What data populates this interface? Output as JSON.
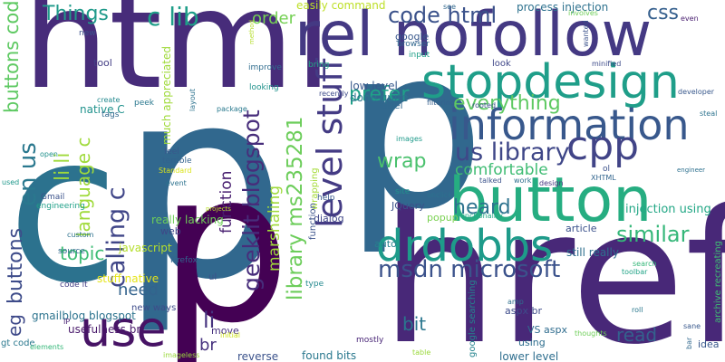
{
  "words": [
    {
      "text": "p",
      "color": "#31688e"
    },
    {
      "text": "href",
      "color": "#482878"
    },
    {
      "text": "p",
      "color": "#31688e"
    },
    {
      "text": "html",
      "color": "#472c7a"
    },
    {
      "text": "c",
      "color": "#2c728e"
    },
    {
      "text": "p",
      "color": "#440154"
    },
    {
      "text": "rel nofollow",
      "color": "#443983"
    },
    {
      "text": "stopdesign",
      "color": "#1f9e89"
    },
    {
      "text": "button",
      "color": "#26ad81"
    },
    {
      "text": "information",
      "color": "#38588c"
    },
    {
      "text": "cpp",
      "color": "#414487"
    },
    {
      "text": "level stuff",
      "color": "#443b84"
    },
    {
      "text": "drdobbs",
      "color": "#1e9b8a"
    },
    {
      "text": "use",
      "color": "#471365"
    },
    {
      "text": "us library",
      "color": "#3f4788"
    },
    {
      "text": "geeklit blogspot",
      "color": "#472d7b"
    },
    {
      "text": "library ms235281",
      "color": "#6ccd5a"
    },
    {
      "text": "msdn microsoft",
      "color": "#3b528b"
    },
    {
      "text": "calling c",
      "color": "#404688"
    },
    {
      "text": "buttons code",
      "color": "#5ec962"
    },
    {
      "text": "Things",
      "color": "#1f9a8a"
    },
    {
      "text": "c lib",
      "color": "#1f9e89"
    },
    {
      "text": "order",
      "color": "#75d054"
    },
    {
      "text": "code html",
      "color": "#3b528b"
    },
    {
      "text": "css",
      "color": "#355f8d"
    },
    {
      "text": "prefer",
      "color": "#1fa188"
    },
    {
      "text": "everything",
      "color": "#5ec962"
    },
    {
      "text": "li li",
      "color": "#9fda3a"
    },
    {
      "text": "language c",
      "color": "#9fda3a"
    },
    {
      "text": "en us",
      "color": "#2a788e"
    },
    {
      "text": "buttons",
      "color": "#3e4c8a"
    },
    {
      "text": "similar",
      "color": "#35b779"
    },
    {
      "text": "heard",
      "color": "#2c728e"
    },
    {
      "text": "comfortable",
      "color": "#3fbc73"
    },
    {
      "text": "wrap",
      "color": "#4ac16d"
    },
    {
      "text": "li",
      "color": "#46337f"
    },
    {
      "text": "need",
      "color": "#33638d"
    },
    {
      "text": "topic",
      "color": "#3dbc74"
    },
    {
      "text": "read",
      "color": "#34618d"
    },
    {
      "text": "bit",
      "color": "#2a768e"
    },
    {
      "text": "eg",
      "color": "#3e4989"
    },
    {
      "text": "br",
      "color": "#46327e"
    },
    {
      "text": "marshaling",
      "color": "#9fda3a"
    },
    {
      "text": "function",
      "color": "#481f70"
    },
    {
      "text": "native C",
      "color": "#20928c"
    },
    {
      "text": "much appreciated",
      "color": "#9fda3a"
    },
    {
      "text": "easily command",
      "color": "#bddf26"
    },
    {
      "text": "process injection",
      "color": "#2d718e"
    },
    {
      "text": "injection using",
      "color": "#22a785"
    },
    {
      "text": "low level",
      "color": "#38588c"
    },
    {
      "text": "done quite",
      "color": "#2a768e"
    },
    {
      "text": "label",
      "color": "#31688e"
    },
    {
      "text": "JQuery",
      "color": "#3b518b"
    },
    {
      "text": "google",
      "color": "#38588c"
    },
    {
      "text": "browser",
      "color": "#31688e"
    },
    {
      "text": "really lacking",
      "color": "#6ece58"
    },
    {
      "text": "javascript",
      "color": "#b5de2b"
    },
    {
      "text": "stuff native",
      "color": "#e5e419"
    },
    {
      "text": "new ways",
      "color": "#3e4c8a"
    },
    {
      "text": "gmailblog blogspot",
      "color": "#2c738e"
    },
    {
      "text": "usefulness br",
      "color": "#48186a"
    },
    {
      "text": "found bits",
      "color": "#2a788e"
    },
    {
      "text": "lower level",
      "color": "#2e6e8e"
    },
    {
      "text": "VS aspx",
      "color": "#2f6c8e"
    },
    {
      "text": "aspx br",
      "color": "#3e4c8a"
    },
    {
      "text": "still really",
      "color": "#2e6f8e"
    },
    {
      "text": "archive recreating",
      "color": "#3fbc73"
    },
    {
      "text": "popup",
      "color": "#7ad151"
    },
    {
      "text": "dialog",
      "color": "#404688"
    },
    {
      "text": "article",
      "color": "#3b518b"
    },
    {
      "text": "reverse",
      "color": "#3b528b"
    },
    {
      "text": "google searching",
      "color": "#25848e"
    },
    {
      "text": "code lt",
      "color": "#433e85"
    },
    {
      "text": "gt code",
      "color": "#2a788e"
    },
    {
      "text": "mostly",
      "color": "#482576"
    },
    {
      "text": "using",
      "color": "#2e6e8e"
    },
    {
      "text": "idea",
      "color": "#38588c"
    },
    {
      "text": "tool",
      "color": "#433d84"
    },
    {
      "text": "move",
      "color": "#46307e"
    },
    {
      "text": "ul",
      "color": "#3b528b"
    },
    {
      "text": "web",
      "color": "#3f4788"
    },
    {
      "text": "auto",
      "color": "#26828e"
    },
    {
      "text": "help",
      "color": "#38598c"
    },
    {
      "text": "type",
      "color": "#23888e"
    },
    {
      "text": "site",
      "color": "#21918c"
    },
    {
      "text": "wrapping",
      "color": "#a5db36"
    },
    {
      "text": "function",
      "color": "#3b528b"
    },
    {
      "text": "Firefox",
      "color": "#32648e"
    },
    {
      "text": "source",
      "color": "#31688e"
    },
    {
      "text": "custom",
      "color": "#2d718e"
    },
    {
      "text": "Gmail",
      "color": "#3b528b"
    },
    {
      "text": "engineering",
      "color": "#1fa088"
    },
    {
      "text": "open",
      "color": "#21918c"
    },
    {
      "text": "used",
      "color": "#1f988b"
    },
    {
      "text": "IP",
      "color": "#482173"
    },
    {
      "text": "elements",
      "color": "#35b779"
    },
    {
      "text": "peek",
      "color": "#2a788e"
    },
    {
      "text": "tags",
      "color": "#31688e"
    },
    {
      "text": "create",
      "color": "#23898e"
    },
    {
      "text": "new",
      "color": "#3b528b"
    },
    {
      "text": "feel",
      "color": "#38588c"
    },
    {
      "text": "terrible",
      "color": "#33638d"
    },
    {
      "text": "event",
      "color": "#2c728e"
    },
    {
      "text": "Standard",
      "color": "#dae319"
    },
    {
      "text": "projects",
      "color": "#b8de29"
    },
    {
      "text": "initial",
      "color": "#cde11d"
    },
    {
      "text": "imageless",
      "color": "#9bd93c"
    },
    {
      "text": "package",
      "color": "#29798e"
    },
    {
      "text": "layout",
      "color": "#2c728e"
    },
    {
      "text": "bring",
      "color": "#22a884"
    },
    {
      "text": "improve",
      "color": "#2f6c8e"
    },
    {
      "text": "looking",
      "color": "#20928c"
    },
    {
      "text": "method",
      "color": "#b5de2b"
    },
    {
      "text": "recently",
      "color": "#3e4c8a"
    },
    {
      "text": "input",
      "color": "#1fa088"
    },
    {
      "text": "see",
      "color": "#31688e"
    },
    {
      "text": "involves",
      "color": "#6ece58"
    },
    {
      "text": "wanted",
      "color": "#3b528b"
    },
    {
      "text": "even",
      "color": "#481d6f"
    },
    {
      "text": "steal",
      "color": "#2c728e"
    },
    {
      "text": "minified",
      "color": "#3e4c8a"
    },
    {
      "text": "developer",
      "color": "#38588c"
    },
    {
      "text": "look",
      "color": "#3f4788"
    },
    {
      "text": "filtering",
      "color": "#35608d"
    },
    {
      "text": "rooted",
      "color": "#3b528b"
    },
    {
      "text": "images",
      "color": "#1f9a8a"
    },
    {
      "text": "talked",
      "color": "#3b528b"
    },
    {
      "text": "work",
      "color": "#2e6f8e"
    },
    {
      "text": "design",
      "color": "#46337f"
    },
    {
      "text": "XHTML",
      "color": "#32658e"
    },
    {
      "text": "ol",
      "color": "#3b528b"
    },
    {
      "text": "engineer",
      "color": "#2d708e"
    },
    {
      "text": "onclick",
      "color": "#2c728e"
    },
    {
      "text": "functionality",
      "color": "#22a785"
    },
    {
      "text": "search",
      "color": "#35b779"
    },
    {
      "text": "toolbar",
      "color": "#20a386"
    },
    {
      "text": "roll",
      "color": "#2a788e"
    },
    {
      "text": "sane",
      "color": "#38588c"
    },
    {
      "text": "bar",
      "color": "#31688e"
    },
    {
      "text": "amp",
      "color": "#2e6f8e"
    },
    {
      "text": "thoughts",
      "color": "#6ece58"
    },
    {
      "text": "table",
      "color": "#9bd93c"
    }
  ]
}
